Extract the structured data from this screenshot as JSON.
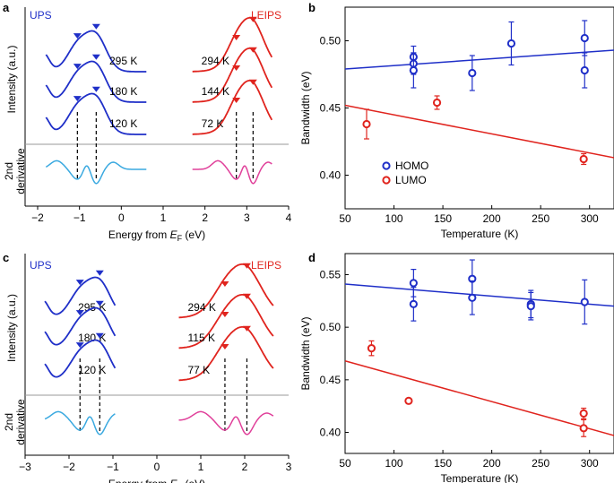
{
  "figure": {
    "panels": [
      {
        "letter": "a",
        "left_label": "UPS",
        "right_label": "LEIPS",
        "ylabel": "Intensity (a.u.)",
        "deriv_label_1": "2nd",
        "deriv_label_2": "derivative",
        "xlabel_pre": "Energy from ",
        "xlabel_sym": "E",
        "xlabel_sub": "F",
        "xlabel_post": " (eV)"
      },
      {
        "letter": "b"
      },
      {
        "letter": "c",
        "left_label": "UPS",
        "right_label": "LEIPS",
        "ylabel": "Intensity (a.u.)",
        "deriv_label_1": "2nd",
        "deriv_label_2": "derivative",
        "xlabel_pre": "Energy from ",
        "xlabel_sym": "E",
        "xlabel_sub": "F",
        "xlabel_post": " (eV)"
      },
      {
        "letter": "d"
      }
    ]
  },
  "colors": {
    "ups": "#1f2fc8",
    "leips": "#e0241e",
    "ups_deriv": "#3aa9e0",
    "leips_deriv": "#e0409a",
    "axis": "#000000",
    "separator": "#999999"
  },
  "chart_data": [
    {
      "panel": "a",
      "type": "line",
      "xlabel": "Energy from EF (eV)",
      "ylabel": "Intensity (a.u.)",
      "xlim": [
        -2.3,
        4
      ],
      "xticks": [
        -2,
        -1,
        0,
        1,
        2,
        3,
        4
      ],
      "ups_label": "UPS",
      "leips_label": "LEIPS",
      "ups_curves": [
        {
          "temp": "295 K",
          "peaks": [
            -1.05,
            -0.6
          ]
        },
        {
          "temp": "180 K",
          "peaks": [
            -1.05,
            -0.6
          ]
        },
        {
          "temp": "120 K",
          "peaks": [
            -1.05,
            -0.6
          ]
        }
      ],
      "leips_curves": [
        {
          "temp": "294 K",
          "peaks": [
            2.75,
            3.15
          ]
        },
        {
          "temp": "144 K",
          "peaks": [
            2.75,
            3.15
          ]
        },
        {
          "temp": "72 K",
          "peaks": [
            2.75,
            3.15
          ]
        }
      ],
      "ups_x_range": [
        -1.8,
        0.6
      ],
      "leips_x_range": [
        1.7,
        3.6
      ],
      "dashed_lines": [
        -1.05,
        -0.6,
        2.75,
        3.15
      ]
    },
    {
      "panel": "b",
      "type": "scatter",
      "xlabel": "Temperature (K)",
      "ylabel": "Bandwidth (eV)",
      "xlim": [
        50,
        325
      ],
      "ylim": [
        0.375,
        0.525
      ],
      "xticks": [
        50,
        100,
        150,
        200,
        250,
        300
      ],
      "yticks": [
        0.4,
        0.45,
        0.5
      ],
      "legend": "lower-left",
      "series": [
        {
          "name": "HOMO",
          "color": "#1f2fc8",
          "points": [
            [
              120,
              0.488,
              0.008
            ],
            [
              120,
              0.483,
              0.008
            ],
            [
              120,
              0.478,
              0.013
            ],
            [
              180,
              0.476,
              0.013
            ],
            [
              220,
              0.498,
              0.016
            ],
            [
              295,
              0.502,
              0.013
            ],
            [
              295,
              0.478,
              0.013
            ]
          ],
          "fit": [
            [
              50,
              0.479
            ],
            [
              325,
              0.493
            ]
          ]
        },
        {
          "name": "LUMO",
          "color": "#e0241e",
          "points": [
            [
              72,
              0.438,
              0.011
            ],
            [
              144,
              0.454,
              0.005
            ],
            [
              294,
              0.412,
              0.004
            ]
          ],
          "fit": [
            [
              50,
              0.452
            ],
            [
              325,
              0.413
            ]
          ]
        }
      ]
    },
    {
      "panel": "c",
      "type": "line",
      "xlabel": "Energy from EF (eV)",
      "ylabel": "Intensity (a.u.)",
      "xlim": [
        -3,
        3
      ],
      "xticks": [
        -3,
        -2,
        -1,
        0,
        1,
        2,
        3
      ],
      "ups_label": "UPS",
      "leips_label": "LEIPS",
      "ups_curves": [
        {
          "temp": "295 K",
          "peaks": [
            -1.75,
            -1.3
          ]
        },
        {
          "temp": "180 K",
          "peaks": [
            -1.75,
            -1.3
          ]
        },
        {
          "temp": "120 K",
          "peaks": [
            -1.75,
            -1.3
          ]
        }
      ],
      "leips_curves": [
        {
          "temp": "294 K",
          "peaks": [
            1.55,
            2.05
          ]
        },
        {
          "temp": "115 K",
          "peaks": [
            1.55,
            2.05
          ]
        },
        {
          "temp": "77 K",
          "peaks": [
            1.55,
            2.05
          ]
        }
      ],
      "ups_x_range": [
        -2.55,
        -0.95
      ],
      "leips_x_range": [
        0.5,
        2.65
      ],
      "dashed_lines": [
        -1.75,
        -1.3,
        1.55,
        2.05
      ]
    },
    {
      "panel": "d",
      "type": "scatter",
      "xlabel": "Temperature (K)",
      "ylabel": "Bandwidth (eV)",
      "xlim": [
        50,
        325
      ],
      "ylim": [
        0.38,
        0.57
      ],
      "xticks": [
        50,
        100,
        150,
        200,
        250,
        300
      ],
      "yticks": [
        0.4,
        0.45,
        0.5,
        0.55
      ],
      "series": [
        {
          "name": "HOMO",
          "color": "#1f2fc8",
          "points": [
            [
              120,
              0.542,
              0.013
            ],
            [
              120,
              0.522,
              0.016
            ],
            [
              180,
              0.546,
              0.018
            ],
            [
              180,
              0.528,
              0.016
            ],
            [
              240,
              0.522,
              0.013
            ],
            [
              240,
              0.52,
              0.013
            ],
            [
              295,
              0.524,
              0.021
            ]
          ],
          "fit": [
            [
              50,
              0.541
            ],
            [
              325,
              0.52
            ]
          ]
        },
        {
          "name": "LUMO",
          "color": "#e0241e",
          "points": [
            [
              77,
              0.48,
              0.007
            ],
            [
              115,
              0.43,
              0.002
            ],
            [
              294,
              0.418,
              0.005
            ],
            [
              294,
              0.404,
              0.008
            ]
          ],
          "fit": [
            [
              50,
              0.468
            ],
            [
              325,
              0.397
            ]
          ]
        }
      ]
    }
  ]
}
